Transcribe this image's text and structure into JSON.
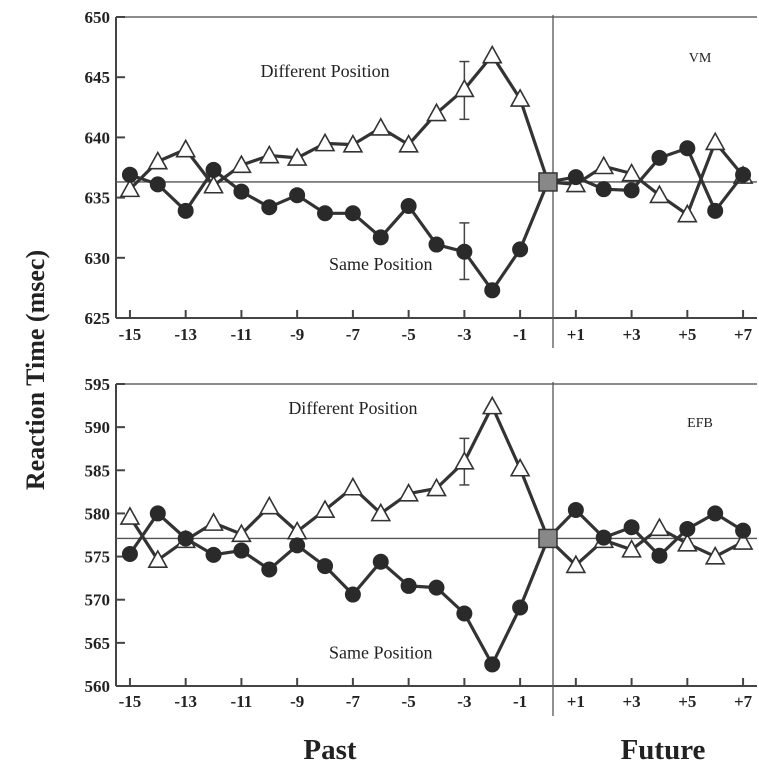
{
  "chart_data": {
    "type": "line",
    "ylabel": "Reaction Time (msec)",
    "bottom_labels": [
      "Past",
      "Future"
    ],
    "x_tick_labels": [
      "-15",
      "-13",
      "-11",
      "-9",
      "-7",
      "-5",
      "-3",
      "-1",
      "+1",
      "+3",
      "+5",
      "+7"
    ],
    "x_tick_values": [
      -15,
      -13,
      -11,
      -9,
      -7,
      -5,
      -3,
      -1,
      1,
      3,
      5,
      7
    ],
    "xlim": [
      -15.5,
      7.5
    ],
    "panels": [
      {
        "subject": "VM",
        "ylim": [
          625,
          650
        ],
        "y_ticks": [
          "625",
          "630",
          "635",
          "640",
          "645",
          "650"
        ],
        "reference": 636.3,
        "x": [
          -15,
          -14,
          -13,
          -12,
          -11,
          -10,
          -9,
          -8,
          -7,
          -6,
          -5,
          -4,
          -3,
          -2,
          -1,
          0,
          1,
          2,
          3,
          4,
          5,
          6,
          7
        ],
        "series": [
          {
            "name": "Different Position",
            "marker": "triangle",
            "label_x": -8,
            "label_y": 645,
            "values": [
              635.7,
              638,
              639,
              636,
              637.7,
              638.5,
              638.3,
              639.5,
              639.4,
              640.8,
              639.4,
              642,
              644,
              646.8,
              643.2,
              636.3,
              636.1,
              637.6,
              637,
              635.2,
              633.6,
              639.6,
              636.8
            ],
            "error": {
              "x": -3,
              "low": 641.5,
              "high": 646.3
            }
          },
          {
            "name": "Same Position",
            "marker": "circle",
            "label_x": -6,
            "label_y": 629,
            "values": [
              636.9,
              636.1,
              633.9,
              637.3,
              635.5,
              634.2,
              635.2,
              633.7,
              633.7,
              631.7,
              634.3,
              631.1,
              630.5,
              627.3,
              630.7,
              636.3,
              636.7,
              635.7,
              635.6,
              638.3,
              639.1,
              633.9,
              636.9
            ],
            "error": {
              "x": -3,
              "low": 628.2,
              "high": 632.9
            }
          }
        ]
      },
      {
        "subject": "EFB",
        "ylim": [
          560,
          595
        ],
        "y_ticks": [
          "560",
          "565",
          "570",
          "575",
          "580",
          "585",
          "590",
          "595"
        ],
        "reference": 577.1,
        "x": [
          -15,
          -14,
          -13,
          -12,
          -11,
          -10,
          -9,
          -8,
          -7,
          -6,
          -5,
          -4,
          -3,
          -2,
          -1,
          0,
          1,
          2,
          3,
          4,
          5,
          6,
          7
        ],
        "series": [
          {
            "name": "Different Position",
            "marker": "triangle",
            "label_x": -7,
            "label_y": 591.5,
            "values": [
              579.6,
              574.6,
              576.9,
              578.9,
              577.6,
              580.8,
              577.9,
              580.4,
              583,
              580,
              582.3,
              582.9,
              586,
              592.4,
              585.2,
              577.1,
              574,
              576.9,
              575.8,
              578.3,
              576.5,
              575,
              576.7
            ],
            "error": {
              "x": -3,
              "low": 583.3,
              "high": 588.7
            }
          },
          {
            "name": "Same Position",
            "marker": "circle",
            "label_x": -6,
            "label_y": 563.2,
            "values": [
              575.3,
              580,
              577.1,
              575.2,
              575.7,
              573.5,
              576.3,
              573.9,
              570.6,
              574.4,
              571.6,
              571.4,
              568.4,
              562.5,
              569.1,
              577.1,
              580.4,
              577.2,
              578.4,
              575.1,
              578.2,
              580,
              578
            ]
          }
        ]
      }
    ]
  }
}
